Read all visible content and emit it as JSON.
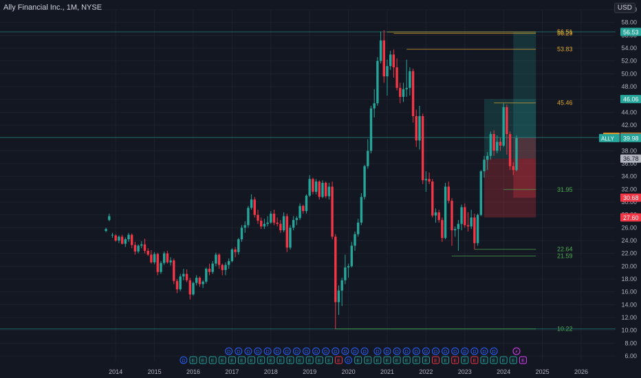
{
  "header": {
    "title": "Ally Financial Inc., 1M, NYSE",
    "currency": "USD"
  },
  "colors": {
    "background": "#131722",
    "up": "#26a69a",
    "down": "#f23645",
    "grid": "#1e222d",
    "axis_text": "#b2b5be",
    "orange": "#e0a82e",
    "green_level": "#4caf50",
    "pre_badge": "#f7931a",
    "gray_badge": "#5d606b",
    "light_badge": "#b2b5be",
    "earnings_blue": "#2962ff",
    "earnings_red": "#f23645",
    "earnings_green": "#26a69a",
    "earnings_purple": "#e040fb"
  },
  "chart_data": {
    "type": "candlestick",
    "symbol": "ALLY",
    "interval": "1M",
    "exchange": "NYSE",
    "x_ticks": [
      "2014",
      "2015",
      "2016",
      "2017",
      "2018",
      "2019",
      "2020",
      "2021",
      "2022",
      "2023",
      "2024",
      "2025",
      "2026"
    ],
    "y_ticks": [
      "6.00",
      "8.00",
      "10.00",
      "12.00",
      "14.00",
      "16.00",
      "18.00",
      "20.00",
      "22.00",
      "24.00",
      "26.00",
      "28.00",
      "30.00",
      "32.00",
      "34.00",
      "36.00",
      "38.00",
      "40.00",
      "42.00",
      "44.00",
      "46.00",
      "48.00",
      "50.00",
      "52.00",
      "54.00",
      "56.00",
      "58.00",
      "60.00"
    ],
    "ylim": [
      6,
      60
    ],
    "x_start": "2014-01",
    "candles": [
      [
        "2014-04",
        25.5,
        26.0,
        25.3,
        25.8
      ],
      [
        "2014-05",
        27.2,
        28.2,
        27.0,
        27.8
      ],
      [
        "2014-06",
        24.8,
        25.2,
        24.4,
        24.9
      ],
      [
        "2014-07",
        24.8,
        25.0,
        23.8,
        24.0
      ],
      [
        "2014-08",
        24.0,
        24.8,
        23.6,
        24.6
      ],
      [
        "2014-09",
        24.6,
        24.9,
        23.4,
        23.5
      ],
      [
        "2014-10",
        23.5,
        24.5,
        23.0,
        24.2
      ],
      [
        "2014-11",
        24.2,
        25.2,
        23.8,
        24.9
      ],
      [
        "2014-12",
        24.9,
        25.1,
        22.8,
        23.3
      ],
      [
        "2015-01",
        23.3,
        23.8,
        21.8,
        22.3
      ],
      [
        "2015-02",
        22.3,
        23.4,
        22.0,
        23.2
      ],
      [
        "2015-03",
        23.2,
        23.9,
        22.8,
        23.4
      ],
      [
        "2015-04",
        23.4,
        24.3,
        22.0,
        22.4
      ],
      [
        "2015-05",
        22.4,
        22.8,
        21.6,
        21.8
      ],
      [
        "2015-06",
        21.8,
        22.5,
        20.4,
        20.6
      ],
      [
        "2015-07",
        20.6,
        22.2,
        20.3,
        21.9
      ],
      [
        "2015-08",
        21.9,
        22.1,
        18.6,
        19.1
      ],
      [
        "2015-09",
        19.1,
        20.8,
        18.8,
        20.5
      ],
      [
        "2015-10",
        20.5,
        22.3,
        20.2,
        22.0
      ],
      [
        "2015-11",
        22.0,
        22.4,
        20.4,
        20.6
      ],
      [
        "2015-12",
        20.6,
        21.4,
        20.1,
        20.9
      ],
      [
        "2016-01",
        20.9,
        21.2,
        17.2,
        17.7
      ],
      [
        "2016-02",
        17.7,
        18.0,
        15.8,
        16.4
      ],
      [
        "2016-03",
        16.4,
        18.8,
        16.1,
        18.4
      ],
      [
        "2016-04",
        18.4,
        19.6,
        17.8,
        18.8
      ],
      [
        "2016-05",
        18.8,
        19.5,
        17.5,
        17.8
      ],
      [
        "2016-06",
        17.8,
        18.2,
        14.8,
        15.6
      ],
      [
        "2016-07",
        15.6,
        17.6,
        15.4,
        17.4
      ],
      [
        "2016-08",
        17.4,
        18.6,
        17.0,
        18.2
      ],
      [
        "2016-09",
        18.2,
        18.4,
        16.8,
        17.2
      ],
      [
        "2016-10",
        17.2,
        17.8,
        16.6,
        17.6
      ],
      [
        "2016-11",
        17.6,
        19.8,
        17.3,
        19.6
      ],
      [
        "2016-12",
        19.6,
        20.4,
        18.6,
        19.1
      ],
      [
        "2017-01",
        19.1,
        20.8,
        18.8,
        20.4
      ],
      [
        "2017-02",
        20.4,
        22.1,
        20.0,
        21.8
      ],
      [
        "2017-03",
        21.8,
        22.0,
        19.6,
        20.2
      ],
      [
        "2017-04",
        20.2,
        20.4,
        18.6,
        19.4
      ],
      [
        "2017-05",
        19.4,
        20.6,
        18.6,
        20.2
      ],
      [
        "2017-06",
        20.2,
        21.2,
        19.6,
        20.8
      ],
      [
        "2017-07",
        20.8,
        22.8,
        20.6,
        22.6
      ],
      [
        "2017-08",
        22.6,
        23.0,
        21.4,
        22.2
      ],
      [
        "2017-09",
        22.2,
        24.4,
        21.8,
        24.2
      ],
      [
        "2017-10",
        24.2,
        26.4,
        23.8,
        26.0
      ],
      [
        "2017-11",
        26.0,
        27.0,
        25.2,
        26.4
      ],
      [
        "2017-12",
        26.4,
        29.4,
        26.0,
        29.1
      ],
      [
        "2018-01",
        29.1,
        31.2,
        28.8,
        30.4
      ],
      [
        "2018-02",
        30.4,
        30.8,
        27.6,
        28.0
      ],
      [
        "2018-03",
        28.0,
        28.8,
        26.6,
        27.1
      ],
      [
        "2018-04",
        27.1,
        27.6,
        25.8,
        26.2
      ],
      [
        "2018-05",
        26.2,
        27.4,
        25.8,
        26.6
      ],
      [
        "2018-06",
        26.6,
        27.8,
        26.2,
        26.8
      ],
      [
        "2018-07",
        26.8,
        28.6,
        26.6,
        28.2
      ],
      [
        "2018-08",
        28.2,
        28.8,
        26.4,
        26.8
      ],
      [
        "2018-09",
        26.8,
        27.6,
        26.2,
        26.6
      ],
      [
        "2018-10",
        26.6,
        27.2,
        25.2,
        25.6
      ],
      [
        "2018-11",
        25.6,
        28.4,
        25.3,
        27.8
      ],
      [
        "2018-12",
        27.8,
        28.2,
        22.2,
        22.9
      ],
      [
        "2019-01",
        22.9,
        26.4,
        22.6,
        26.0
      ],
      [
        "2019-02",
        26.0,
        27.8,
        25.6,
        27.2
      ],
      [
        "2019-03",
        27.2,
        27.8,
        26.4,
        27.5
      ],
      [
        "2019-04",
        27.5,
        29.8,
        27.2,
        29.4
      ],
      [
        "2019-05",
        29.4,
        29.6,
        28.2,
        28.6
      ],
      [
        "2019-06",
        28.6,
        31.2,
        28.2,
        31.0
      ],
      [
        "2019-07",
        31.0,
        34.2,
        30.8,
        33.6
      ],
      [
        "2019-08",
        33.6,
        33.8,
        31.2,
        31.6
      ],
      [
        "2019-09",
        31.6,
        33.6,
        31.2,
        33.2
      ],
      [
        "2019-10",
        33.2,
        33.4,
        30.4,
        30.8
      ],
      [
        "2019-11",
        30.8,
        33.4,
        30.6,
        33.0
      ],
      [
        "2019-12",
        33.0,
        33.2,
        30.6,
        30.9
      ],
      [
        "2020-01",
        30.9,
        33.0,
        30.4,
        32.4
      ],
      [
        "2020-02",
        32.4,
        33.2,
        24.2,
        24.6
      ],
      [
        "2020-03",
        24.6,
        25.0,
        10.2,
        14.4
      ],
      [
        "2020-04",
        14.4,
        17.0,
        12.4,
        16.2
      ],
      [
        "2020-05",
        16.2,
        18.2,
        13.8,
        17.8
      ],
      [
        "2020-06",
        17.8,
        21.8,
        17.2,
        19.8
      ],
      [
        "2020-07",
        19.8,
        20.4,
        18.2,
        20.0
      ],
      [
        "2020-08",
        20.0,
        23.8,
        19.8,
        23.2
      ],
      [
        "2020-09",
        23.2,
        25.4,
        22.4,
        25.0
      ],
      [
        "2020-10",
        25.0,
        27.4,
        24.6,
        26.8
      ],
      [
        "2020-11",
        26.8,
        31.4,
        26.4,
        30.8
      ],
      [
        "2020-12",
        30.8,
        35.8,
        30.4,
        35.6
      ],
      [
        "2021-01",
        35.6,
        39.8,
        35.2,
        38.0
      ],
      [
        "2021-02",
        38.0,
        45.0,
        37.6,
        44.6
      ],
      [
        "2021-03",
        44.6,
        47.6,
        43.2,
        45.4
      ],
      [
        "2021-04",
        45.4,
        52.6,
        45.0,
        52.0
      ],
      [
        "2021-05",
        52.0,
        56.6,
        51.6,
        55.2
      ],
      [
        "2021-06",
        55.2,
        56.8,
        48.6,
        49.6
      ],
      [
        "2021-07",
        49.6,
        52.2,
        46.6,
        51.2
      ],
      [
        "2021-08",
        51.2,
        53.6,
        50.6,
        53.0
      ],
      [
        "2021-09",
        53.0,
        53.8,
        49.4,
        51.0
      ],
      [
        "2021-10",
        51.0,
        52.4,
        47.4,
        47.8
      ],
      [
        "2021-11",
        47.8,
        48.6,
        45.4,
        46.4
      ],
      [
        "2021-12",
        46.4,
        48.6,
        45.6,
        47.6
      ],
      [
        "2022-01",
        47.6,
        52.2,
        46.4,
        47.8
      ],
      [
        "2022-02",
        47.8,
        51.0,
        46.6,
        50.4
      ],
      [
        "2022-03",
        50.4,
        50.8,
        42.4,
        43.4
      ],
      [
        "2022-04",
        43.4,
        44.4,
        38.6,
        39.6
      ],
      [
        "2022-05",
        39.6,
        45.0,
        38.2,
        43.4
      ],
      [
        "2022-06",
        43.4,
        43.8,
        32.8,
        33.4
      ],
      [
        "2022-07",
        33.4,
        34.8,
        31.6,
        33.6
      ],
      [
        "2022-08",
        33.6,
        34.6,
        32.8,
        33.2
      ],
      [
        "2022-09",
        33.2,
        33.6,
        27.6,
        27.9
      ],
      [
        "2022-10",
        27.9,
        29.0,
        26.8,
        28.4
      ],
      [
        "2022-11",
        28.4,
        28.8,
        26.8,
        27.2
      ],
      [
        "2022-12",
        27.2,
        27.6,
        23.8,
        24.4
      ],
      [
        "2023-01",
        24.4,
        33.0,
        24.2,
        32.4
      ],
      [
        "2023-02",
        32.4,
        33.2,
        29.8,
        30.2
      ],
      [
        "2023-03",
        30.2,
        30.6,
        23.2,
        25.6
      ],
      [
        "2023-04",
        25.6,
        26.2,
        24.6,
        25.8
      ],
      [
        "2023-05",
        25.8,
        27.2,
        22.4,
        26.6
      ],
      [
        "2023-06",
        26.6,
        29.6,
        25.6,
        29.2
      ],
      [
        "2023-07",
        29.2,
        29.8,
        26.0,
        26.4
      ],
      [
        "2023-08",
        26.4,
        28.4,
        25.4,
        26.2
      ],
      [
        "2023-09",
        26.2,
        28.8,
        25.8,
        27.6
      ],
      [
        "2023-10",
        27.6,
        28.2,
        22.6,
        23.6
      ],
      [
        "2023-11",
        23.6,
        28.2,
        23.2,
        28.0
      ],
      [
        "2023-12",
        28.0,
        35.0,
        27.8,
        34.8
      ],
      [
        "2024-01",
        34.8,
        37.2,
        33.8,
        36.6
      ],
      [
        "2024-02",
        36.6,
        37.8,
        35.0,
        37.2
      ],
      [
        "2024-03",
        37.2,
        41.0,
        36.6,
        40.6
      ],
      [
        "2024-04",
        40.6,
        41.2,
        37.2,
        38.0
      ],
      [
        "2024-05",
        38.0,
        40.4,
        37.6,
        39.4
      ],
      [
        "2024-06",
        39.4,
        40.0,
        38.0,
        38.8
      ],
      [
        "2024-07",
        38.8,
        45.4,
        38.6,
        44.8
      ],
      [
        "2024-08",
        44.8,
        45.2,
        37.4,
        40.6
      ],
      [
        "2024-09",
        40.6,
        41.0,
        35.0,
        35.6
      ],
      [
        "2024-10",
        35.6,
        36.2,
        34.2,
        35.0
      ],
      [
        "2024-11",
        35.0,
        40.4,
        34.8,
        39.98
      ]
    ],
    "level_lines": [
      {
        "label": "56.51",
        "start": "2021-07",
        "value": 56.51,
        "color": "orange"
      },
      {
        "label": "56.29",
        "start": "2021-09",
        "value": 56.29,
        "color": "orange"
      },
      {
        "label": "53.83",
        "start": "2022-01",
        "value": 53.83,
        "color": "orange"
      },
      {
        "label": "45.46",
        "start": "2024-04",
        "value": 45.46,
        "color": "orange"
      },
      {
        "label": "31.95",
        "start": "2024-07",
        "value": 31.95,
        "color": "green_level"
      },
      {
        "label": "22.64",
        "start": "2023-10",
        "value": 22.64,
        "color": "green_level"
      },
      {
        "label": "21.59",
        "start": "2023-03",
        "value": 21.59,
        "color": "green_level"
      },
      {
        "label": "10.22",
        "start": "2020-03",
        "value": 10.22,
        "color": "green_level"
      }
    ],
    "zones": [
      {
        "kind": "profit",
        "from": "2024-01",
        "to": "2025-05",
        "top": 46.06,
        "bottom": 36.78
      },
      {
        "kind": "loss",
        "from": "2024-01",
        "to": "2025-05",
        "top": 36.78,
        "bottom": 27.6
      },
      {
        "kind": "profit",
        "from": "2024-10",
        "to": "2025-05",
        "top": 56.53,
        "bottom": 40.07
      },
      {
        "kind": "loss",
        "from": "2024-10",
        "to": "2025-05",
        "top": 40.07,
        "bottom": 30.68
      }
    ],
    "horizontal_lines": [
      {
        "value": 56.53
      },
      {
        "value": 40.07
      },
      {
        "value": 10.22
      }
    ],
    "price_badges": [
      {
        "label": "",
        "value": 56.53,
        "text": "56.53",
        "color": "up"
      },
      {
        "label": "",
        "value": 46.06,
        "text": "46.06",
        "color": "up"
      },
      {
        "label": "Pre",
        "value": 40.18,
        "text": "40.18",
        "color": "pre_badge"
      },
      {
        "label": "",
        "value": 40.07,
        "text": "40.07",
        "color": "gray_badge"
      },
      {
        "label": "ALLY",
        "value": 39.98,
        "text": "39.98",
        "color": "up"
      },
      {
        "label": "",
        "value": 36.78,
        "text": "36.78",
        "color": "light_badge"
      },
      {
        "label": "",
        "value": 30.68,
        "text": "30.68",
        "color": "down"
      },
      {
        "label": "",
        "value": 27.6,
        "text": "27.60",
        "color": "down"
      }
    ],
    "events_dividends": [
      "2017-06",
      "2017-09",
      "2017-12",
      "2018-03",
      "2018-06",
      "2018-09",
      "2018-12",
      "2019-03",
      "2019-06",
      "2019-09",
      "2019-12",
      "2020-03",
      "2020-06",
      "2020-09",
      "2020-12",
      "2021-04",
      "2021-07",
      "2021-10",
      "2022-01",
      "2022-04",
      "2022-07",
      "2022-10",
      "2023-01",
      "2023-04",
      "2023-07",
      "2023-10",
      "2024-01",
      "2024-04"
    ],
    "events_dividends_label": "D",
    "events_earnings": [
      [
        "2016-04",
        "D"
      ],
      [
        "2016-07",
        "E"
      ],
      [
        "2016-10",
        "E"
      ],
      [
        "2017-01",
        "E"
      ],
      [
        "2017-04",
        "E"
      ],
      [
        "2017-07",
        "E"
      ],
      [
        "2017-10",
        "E"
      ],
      [
        "2018-01",
        "E"
      ],
      [
        "2018-04",
        "E"
      ],
      [
        "2018-07",
        "E"
      ],
      [
        "2018-10",
        "E"
      ],
      [
        "2019-01",
        "E"
      ],
      [
        "2019-04",
        "E"
      ],
      [
        "2019-07",
        "E"
      ],
      [
        "2019-10",
        "E"
      ],
      [
        "2020-01",
        "E"
      ],
      [
        "2020-04",
        "E"
      ],
      [
        "2020-07",
        "D"
      ],
      [
        "2020-10",
        "E"
      ],
      [
        "2021-01",
        "E"
      ],
      [
        "2021-04",
        "E"
      ],
      [
        "2021-07",
        "E"
      ],
      [
        "2021-10",
        "E"
      ],
      [
        "2022-01",
        "E"
      ],
      [
        "2022-04",
        "E"
      ],
      [
        "2022-07",
        "E"
      ],
      [
        "2022-10",
        "E"
      ],
      [
        "2023-01",
        "E"
      ],
      [
        "2023-04",
        "E"
      ],
      [
        "2023-07",
        "E"
      ],
      [
        "2023-10",
        "E"
      ],
      [
        "2024-01",
        "E"
      ],
      [
        "2024-04",
        "E"
      ],
      [
        "2024-07",
        "E"
      ],
      [
        "2024-10",
        "E"
      ],
      [
        "2025-01",
        "E"
      ]
    ],
    "events_earnings_down": [
      "2020-04",
      "2022-10",
      "2023-04",
      "2023-10"
    ],
    "events_dividend_flags": [
      "2016-04",
      "2020-07"
    ],
    "event_flash": {
      "date": "2024-11",
      "label": "⚡"
    }
  }
}
